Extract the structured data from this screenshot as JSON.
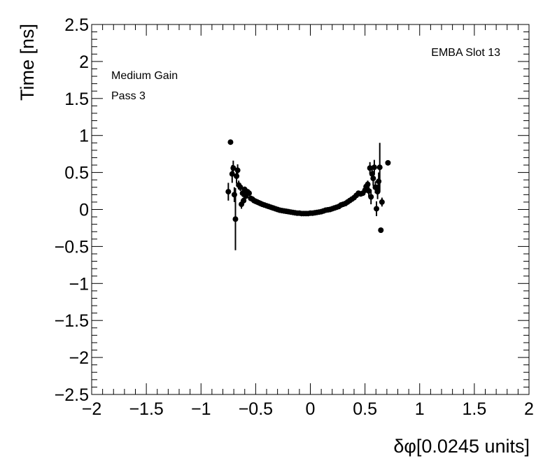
{
  "chart_data": {
    "type": "scatter",
    "title": "",
    "xlabel": "δφ[0.0245 units]",
    "ylabel": "Time [ns]",
    "xlim": [
      -2,
      2
    ],
    "ylim": [
      -2.5,
      2.5
    ],
    "x_ticks": [
      -2,
      -1.5,
      -1,
      -0.5,
      0,
      0.5,
      1,
      1.5,
      2
    ],
    "x_tick_labels": [
      "−2",
      "−1.5",
      "−1",
      "−0.5",
      "0",
      "0.5",
      "1",
      "1.5",
      "2"
    ],
    "y_ticks": [
      2.5,
      2,
      1.5,
      1,
      0.5,
      0,
      -0.5,
      -1,
      -1.5,
      -2,
      -2.5
    ],
    "y_tick_labels": [
      "2.5",
      "2",
      "1.5",
      "1",
      "0.5",
      "0",
      "−0.5",
      "−1",
      "−1.5",
      "−2",
      "−2.5"
    ],
    "grid": false,
    "annotations": {
      "top_right": "EMBA Slot 13",
      "gain": "Medium Gain",
      "pass": "Pass 3"
    },
    "marker_color": "#000000",
    "points": [
      {
        "x": -0.75,
        "y": 0.24,
        "err": 0.12
      },
      {
        "x": -0.73,
        "y": 0.91,
        "err": 0.03
      },
      {
        "x": -0.715,
        "y": 0.48,
        "err": 0.12
      },
      {
        "x": -0.705,
        "y": 0.56,
        "err": 0.1
      },
      {
        "x": -0.695,
        "y": 0.2,
        "err": 0.1
      },
      {
        "x": -0.685,
        "y": -0.13,
        "err": 0.42
      },
      {
        "x": -0.675,
        "y": 0.45,
        "err": 0.1
      },
      {
        "x": -0.665,
        "y": 0.53,
        "err": 0.08
      },
      {
        "x": -0.655,
        "y": 0.33,
        "err": 0.06
      },
      {
        "x": -0.64,
        "y": 0.3,
        "err": 0.05
      },
      {
        "x": -0.63,
        "y": 0.07,
        "err": 0.06
      },
      {
        "x": -0.62,
        "y": 0.22,
        "err": 0.05
      },
      {
        "x": -0.61,
        "y": 0.12,
        "err": 0.04
      },
      {
        "x": -0.6,
        "y": 0.27,
        "err": 0.04
      },
      {
        "x": -0.59,
        "y": 0.18,
        "err": 0.03
      },
      {
        "x": -0.575,
        "y": 0.24,
        "err": 0.03
      },
      {
        "x": -0.56,
        "y": 0.22,
        "err": 0.03
      },
      {
        "x": -0.545,
        "y": 0.15,
        "err": 0.02
      },
      {
        "x": -0.53,
        "y": 0.14,
        "err": 0.02
      },
      {
        "x": -0.515,
        "y": 0.12,
        "err": 0.02
      },
      {
        "x": -0.5,
        "y": 0.11,
        "err": 0.02
      },
      {
        "x": -0.485,
        "y": 0.1,
        "err": 0.02
      },
      {
        "x": -0.47,
        "y": 0.09,
        "err": 0.01
      },
      {
        "x": -0.455,
        "y": 0.08,
        "err": 0.01
      },
      {
        "x": -0.44,
        "y": 0.07,
        "err": 0.01
      },
      {
        "x": -0.42,
        "y": 0.06,
        "err": 0.01
      },
      {
        "x": -0.4,
        "y": 0.05,
        "err": 0.01
      },
      {
        "x": -0.38,
        "y": 0.04,
        "err": 0.01
      },
      {
        "x": -0.36,
        "y": 0.03,
        "err": 0.01
      },
      {
        "x": -0.34,
        "y": 0.02,
        "err": 0.01
      },
      {
        "x": -0.32,
        "y": 0.01,
        "err": 0.01
      },
      {
        "x": -0.3,
        "y": 0.0,
        "err": 0.01
      },
      {
        "x": -0.28,
        "y": -0.01,
        "err": 0.01
      },
      {
        "x": -0.26,
        "y": -0.015,
        "err": 0.01
      },
      {
        "x": -0.24,
        "y": -0.02,
        "err": 0.01
      },
      {
        "x": -0.22,
        "y": -0.025,
        "err": 0.01
      },
      {
        "x": -0.2,
        "y": -0.03,
        "err": 0.01
      },
      {
        "x": -0.18,
        "y": -0.035,
        "err": 0.01
      },
      {
        "x": -0.16,
        "y": -0.04,
        "err": 0.01
      },
      {
        "x": -0.14,
        "y": -0.045,
        "err": 0.01
      },
      {
        "x": -0.12,
        "y": -0.05,
        "err": 0.01
      },
      {
        "x": -0.1,
        "y": -0.05,
        "err": 0.01
      },
      {
        "x": -0.08,
        "y": -0.055,
        "err": 0.01
      },
      {
        "x": -0.06,
        "y": -0.055,
        "err": 0.01
      },
      {
        "x": -0.04,
        "y": -0.055,
        "err": 0.01
      },
      {
        "x": -0.02,
        "y": -0.055,
        "err": 0.01
      },
      {
        "x": 0.0,
        "y": -0.05,
        "err": 0.01
      },
      {
        "x": 0.02,
        "y": -0.05,
        "err": 0.01
      },
      {
        "x": 0.04,
        "y": -0.045,
        "err": 0.01
      },
      {
        "x": 0.06,
        "y": -0.04,
        "err": 0.01
      },
      {
        "x": 0.08,
        "y": -0.035,
        "err": 0.01
      },
      {
        "x": 0.1,
        "y": -0.03,
        "err": 0.01
      },
      {
        "x": 0.12,
        "y": -0.02,
        "err": 0.01
      },
      {
        "x": 0.14,
        "y": -0.01,
        "err": 0.01
      },
      {
        "x": 0.16,
        "y": -0.005,
        "err": 0.01
      },
      {
        "x": 0.18,
        "y": 0.0,
        "err": 0.01
      },
      {
        "x": 0.2,
        "y": 0.01,
        "err": 0.01
      },
      {
        "x": 0.22,
        "y": 0.02,
        "err": 0.01
      },
      {
        "x": 0.24,
        "y": 0.03,
        "err": 0.01
      },
      {
        "x": 0.26,
        "y": 0.04,
        "err": 0.01
      },
      {
        "x": 0.28,
        "y": 0.06,
        "err": 0.01
      },
      {
        "x": 0.3,
        "y": 0.07,
        "err": 0.01
      },
      {
        "x": 0.32,
        "y": 0.08,
        "err": 0.01
      },
      {
        "x": 0.34,
        "y": 0.1,
        "err": 0.01
      },
      {
        "x": 0.36,
        "y": 0.12,
        "err": 0.02
      },
      {
        "x": 0.38,
        "y": 0.14,
        "err": 0.02
      },
      {
        "x": 0.4,
        "y": 0.16,
        "err": 0.02
      },
      {
        "x": 0.42,
        "y": 0.19,
        "err": 0.02
      },
      {
        "x": 0.44,
        "y": 0.22,
        "err": 0.02
      },
      {
        "x": 0.46,
        "y": 0.21,
        "err": 0.03
      },
      {
        "x": 0.48,
        "y": 0.22,
        "err": 0.03
      },
      {
        "x": 0.5,
        "y": 0.26,
        "err": 0.04
      },
      {
        "x": 0.51,
        "y": 0.31,
        "err": 0.05
      },
      {
        "x": 0.525,
        "y": 0.34,
        "err": 0.05
      },
      {
        "x": 0.535,
        "y": 0.25,
        "err": 0.08
      },
      {
        "x": 0.545,
        "y": 0.56,
        "err": 0.08
      },
      {
        "x": 0.555,
        "y": 0.17,
        "err": 0.1
      },
      {
        "x": 0.565,
        "y": 0.48,
        "err": 0.08
      },
      {
        "x": 0.575,
        "y": 0.42,
        "err": 0.1
      },
      {
        "x": 0.585,
        "y": 0.57,
        "err": 0.1
      },
      {
        "x": 0.595,
        "y": 0.3,
        "err": 0.08
      },
      {
        "x": 0.605,
        "y": 0.01,
        "err": 0.1
      },
      {
        "x": 0.615,
        "y": 0.24,
        "err": 0.1
      },
      {
        "x": 0.625,
        "y": 0.38,
        "err": 0.12
      },
      {
        "x": 0.635,
        "y": 0.57,
        "err": 0.33
      },
      {
        "x": 0.645,
        "y": -0.28,
        "err": 0.02
      },
      {
        "x": 0.655,
        "y": 0.1,
        "err": 0.06
      },
      {
        "x": 0.71,
        "y": 0.63,
        "err": 0.02
      }
    ]
  }
}
